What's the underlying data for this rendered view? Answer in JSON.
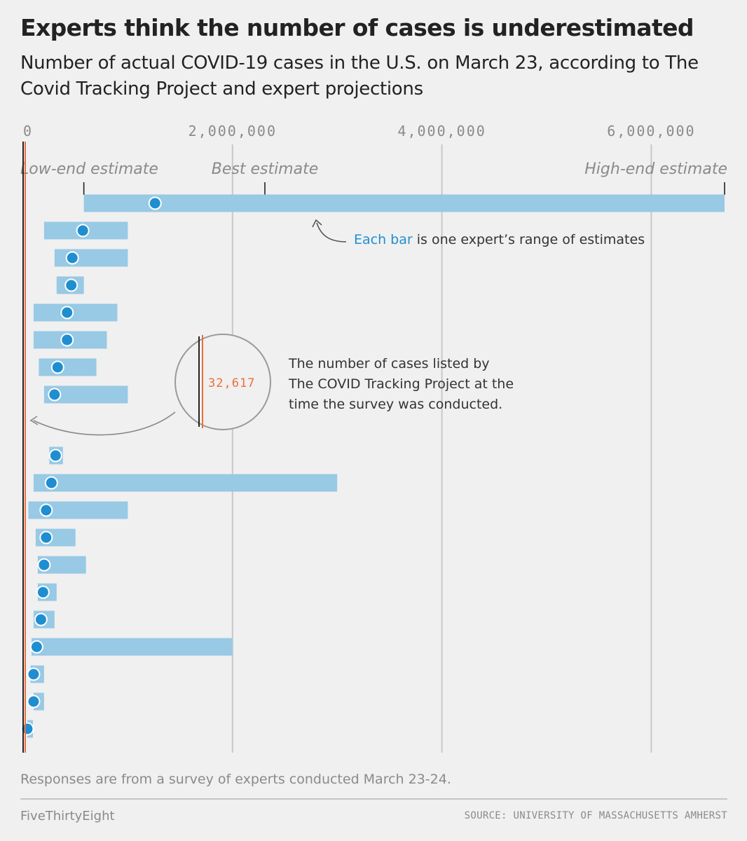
{
  "title": "Experts think the number of cases is underestimated",
  "subtitle": "Number of actual COVID-19 cases in the U.S. on March 23, according to The Covid Tracking Project and expert projections",
  "footnote": "Responses are from a survey of experts conducted March 23-24.",
  "brand": "FiveThirtyEight",
  "source": "SOURCE: UNIVERSITY OF MASSACHUSETTS AMHERST",
  "colors": {
    "bar": "#98c9e5",
    "dot": "#1f8ed1",
    "reference": "#ec6e3c",
    "grid": "#c8c8c8",
    "text": "#222222",
    "muted": "#8a8a8a"
  },
  "chart_data": {
    "type": "range-dot",
    "xlim": [
      0,
      6700000
    ],
    "xticks": [
      0,
      2000000,
      4000000,
      6000000
    ],
    "xtick_labels": [
      "0",
      "2,000,000",
      "4,000,000",
      "6,000,000"
    ],
    "legend_labels": {
      "low": "Low-end estimate",
      "best": "Best estimate",
      "high": "High-end estimate"
    },
    "annotation_bar": {
      "highlight": "Each bar",
      "rest": " is one expert’s range of estimates"
    },
    "annotation_reference": [
      "The number of cases listed by",
      "The COVID Tracking Project at the",
      "time the survey was conducted."
    ],
    "reference_value": 32617,
    "reference_label": "32,617",
    "group_break_after": 8,
    "experts": [
      {
        "low": 580000,
        "best": 1260000,
        "high": 6700000
      },
      {
        "low": 200000,
        "best": 570000,
        "high": 1000000
      },
      {
        "low": 300000,
        "best": 470000,
        "high": 1000000
      },
      {
        "low": 320000,
        "best": 460000,
        "high": 580000
      },
      {
        "low": 100000,
        "best": 420000,
        "high": 900000
      },
      {
        "low": 100000,
        "best": 420000,
        "high": 800000
      },
      {
        "low": 150000,
        "best": 330000,
        "high": 700000
      },
      {
        "low": 200000,
        "best": 300000,
        "high": 1000000
      },
      {
        "low": 250000,
        "best": 310000,
        "high": 380000
      },
      {
        "low": 100000,
        "best": 270000,
        "high": 3000000
      },
      {
        "low": 50000,
        "best": 220000,
        "high": 1000000
      },
      {
        "low": 120000,
        "best": 220000,
        "high": 500000
      },
      {
        "low": 140000,
        "best": 200000,
        "high": 600000
      },
      {
        "low": 140000,
        "best": 190000,
        "high": 320000
      },
      {
        "low": 100000,
        "best": 170000,
        "high": 300000
      },
      {
        "low": 80000,
        "best": 130000,
        "high": 2000000
      },
      {
        "low": 70000,
        "best": 100000,
        "high": 200000
      },
      {
        "low": 100000,
        "best": 100000,
        "high": 200000
      },
      {
        "low": 40000,
        "best": 40000,
        "high": 80000
      }
    ]
  }
}
